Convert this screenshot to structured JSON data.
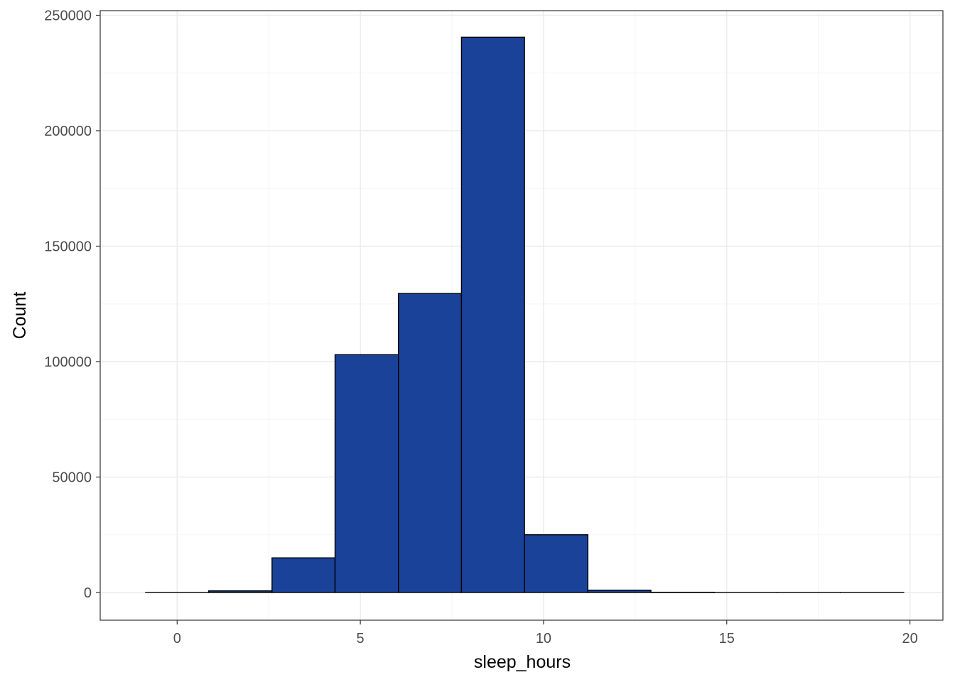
{
  "colors": {
    "bar_fill": "#1a4299",
    "bar_stroke": "#000000",
    "panel_border": "#333333",
    "grid_major": "#ebebeb",
    "grid_minor": "#f5f5f5"
  },
  "chart_data": {
    "type": "bar",
    "subtype": "histogram",
    "title": "",
    "xlabel": "sleep_hours",
    "ylabel": "Count",
    "xlim": [
      -2.1,
      20.9
    ],
    "ylim": [
      -12000,
      252000
    ],
    "x_ticks": [
      0,
      5,
      10,
      15,
      20
    ],
    "y_ticks": [
      0,
      50000,
      100000,
      150000,
      200000,
      250000
    ],
    "x_tick_labels": [
      "0",
      "5",
      "10",
      "15",
      "20"
    ],
    "y_tick_labels": [
      "0",
      "50000",
      "100000",
      "150000",
      "200000",
      "250000"
    ],
    "grid": true,
    "legend": "none",
    "bins": [
      {
        "x0": -0.86,
        "x1": 0.86,
        "count": 0
      },
      {
        "x0": 0.86,
        "x1": 2.59,
        "count": 700
      },
      {
        "x0": 2.59,
        "x1": 4.31,
        "count": 15000
      },
      {
        "x0": 4.31,
        "x1": 6.04,
        "count": 103000
      },
      {
        "x0": 6.04,
        "x1": 7.76,
        "count": 129500
      },
      {
        "x0": 7.76,
        "x1": 9.48,
        "count": 240500
      },
      {
        "x0": 9.48,
        "x1": 11.21,
        "count": 25000
      },
      {
        "x0": 11.21,
        "x1": 12.93,
        "count": 1000
      },
      {
        "x0": 12.93,
        "x1": 14.66,
        "count": 100
      },
      {
        "x0": 14.66,
        "x1": 16.38,
        "count": 0
      },
      {
        "x0": 16.38,
        "x1": 18.1,
        "count": 0
      },
      {
        "x0": 18.1,
        "x1": 19.83,
        "count": 0
      }
    ]
  }
}
